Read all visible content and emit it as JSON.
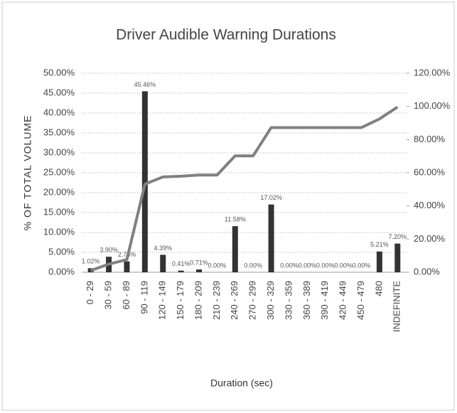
{
  "chart_data": {
    "type": "bar",
    "title": "Driver Audible Warning Durations",
    "y_label": "% OF TOTAL VOLUME",
    "x_label": "Duration (sec)",
    "categories": [
      "0 - 29",
      "30 - 59",
      "60 - 89",
      "90 - 119",
      "120 - 149",
      "150 - 179",
      "180 - 209",
      "210 - 239",
      "240 - 269",
      "270 - 299",
      "300 - 329",
      "330 - 359",
      "360 - 389",
      "390 - 419",
      "420 - 449",
      "450 - 479",
      "480",
      "INDEFINITE"
    ],
    "series": [
      {
        "type": "bar",
        "color": "#333333",
        "values": [
          1.02,
          3.9,
          2.73,
          45.46,
          4.39,
          0.41,
          0.71,
          0.0,
          11.58,
          0.0,
          17.02,
          0.0,
          0.0,
          0.0,
          0.0,
          0.0,
          5.21,
          7.2
        ],
        "value_labels": [
          "1.02%",
          "3.90%",
          "2.73%",
          "45.46%",
          "4.39%",
          "0.41%",
          "0.71%",
          "0.00%",
          "11.58%",
          "0.00%",
          "17.02%",
          "0.00%",
          "0.00%",
          "0.00%",
          "0.00%",
          "0.00%",
          "5.21%",
          "7.20%"
        ]
      },
      {
        "type": "line",
        "axis": "y2",
        "color": "#808080",
        "values": [
          1.02,
          4.92,
          7.65,
          53.11,
          57.5,
          57.91,
          58.62,
          58.62,
          70.2,
          70.2,
          87.22,
          87.22,
          87.22,
          87.22,
          87.22,
          87.22,
          92.43,
          99.63
        ]
      }
    ],
    "ylim": [
      0,
      50
    ],
    "yticks": [
      {
        "value": 0,
        "label": "0.00%"
      },
      {
        "value": 5,
        "label": "5.00%"
      },
      {
        "value": 10,
        "label": "10.00%"
      },
      {
        "value": 15,
        "label": "15.00%"
      },
      {
        "value": 20,
        "label": "20.00%"
      },
      {
        "value": 25,
        "label": "25.00%"
      },
      {
        "value": 30,
        "label": "30.00%"
      },
      {
        "value": 35,
        "label": "35.00%"
      },
      {
        "value": 40,
        "label": "40.00%"
      },
      {
        "value": 45,
        "label": "45.00%"
      },
      {
        "value": 50,
        "label": "50.00%"
      }
    ],
    "y2lim": [
      0,
      120
    ],
    "y2ticks": [
      {
        "value": 0,
        "label": "0.00%"
      },
      {
        "value": 20,
        "label": "20.00%"
      },
      {
        "value": 40,
        "label": "40.00%"
      },
      {
        "value": 60,
        "label": "60.00%"
      },
      {
        "value": 80,
        "label": "80.00%"
      },
      {
        "value": 100,
        "label": "100.00%"
      },
      {
        "value": 120,
        "label": "120.00%"
      }
    ],
    "grid": true
  }
}
